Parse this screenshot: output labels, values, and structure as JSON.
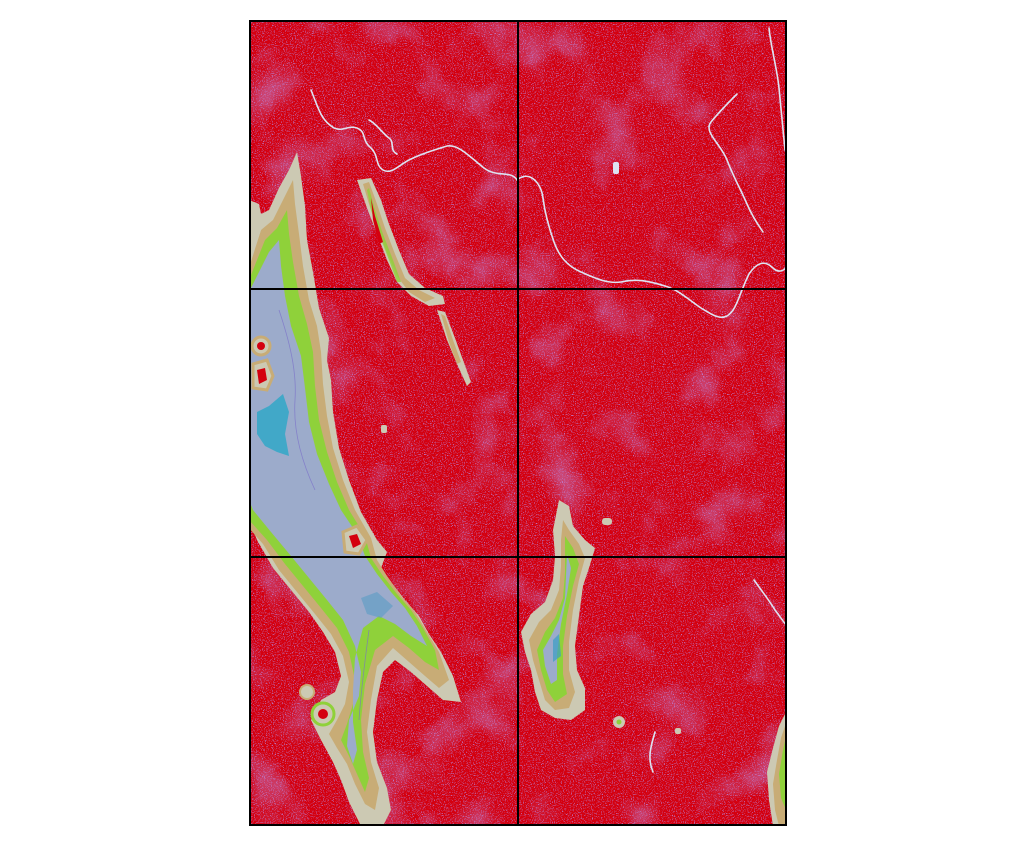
{
  "map": {
    "grid": {
      "rows": 3,
      "cols": 2
    },
    "colors": {
      "land": "#d4000f",
      "land_noise": "#7a3fbf",
      "river": "#dde3f2",
      "buffer_outer": "#ccc9b3",
      "buffer_tan": "#c8ac76",
      "buffer_green": "#8fd13a",
      "water_shallow": "#9cabcb",
      "water_deep": "#2aa7c7",
      "grid_line": "#000000",
      "background": "#ffffff"
    },
    "legend": {
      "present": false
    }
  }
}
